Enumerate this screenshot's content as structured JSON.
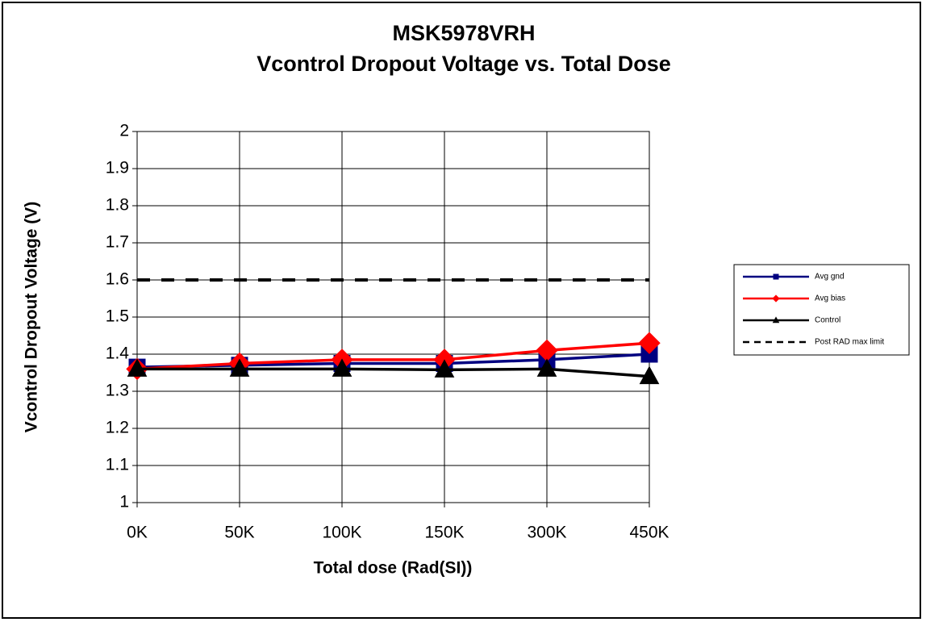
{
  "chart_data": {
    "type": "line",
    "title": "MSK5978VRH",
    "subtitle": "Vcontrol Dropout Voltage vs. Total Dose",
    "x_label": "Total dose (Rad(SI))",
    "y_label": "Vcontrol Dropout Voltage (V)",
    "categories": [
      "0K",
      "50K",
      "100K",
      "150K",
      "300K",
      "450K"
    ],
    "series": [
      {
        "name": "Avg gnd",
        "color": "#000080",
        "marker": "square",
        "line_style": "solid",
        "values": [
          1.365,
          1.37,
          1.375,
          1.375,
          1.385,
          1.4
        ]
      },
      {
        "name": "Avg bias",
        "color": "#ff0000",
        "marker": "diamond",
        "line_style": "solid",
        "values": [
          1.36,
          1.375,
          1.385,
          1.385,
          1.41,
          1.43
        ]
      },
      {
        "name": "Control",
        "color": "#000000",
        "marker": "triangle",
        "line_style": "solid",
        "values": [
          1.36,
          1.36,
          1.36,
          1.358,
          1.36,
          1.34
        ]
      },
      {
        "name": "Post RAD max limit",
        "color": "#000000",
        "marker": "none",
        "line_style": "dashed",
        "values": [
          1.6,
          1.6,
          1.6,
          1.6,
          1.6,
          1.6
        ]
      }
    ],
    "ylim": [
      1,
      2
    ],
    "yticks": [
      1,
      1.1,
      1.2,
      1.3,
      1.4,
      1.5,
      1.6,
      1.7,
      1.8,
      1.9,
      2
    ],
    "grid": true,
    "legend": "right"
  }
}
